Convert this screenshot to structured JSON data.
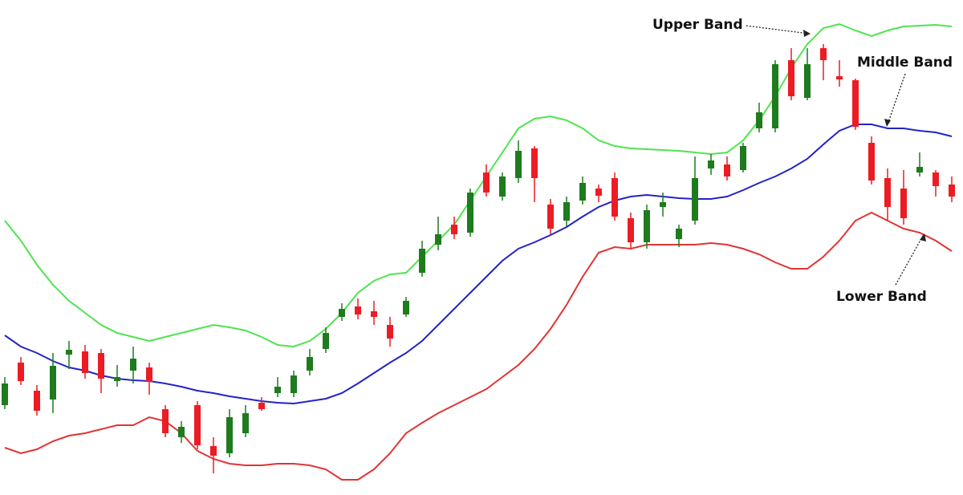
{
  "chart_data": {
    "type": "candlestick",
    "categories": [
      null,
      null,
      null,
      null,
      null,
      null,
      null,
      null,
      null,
      null,
      null,
      null,
      null,
      null,
      null,
      null,
      null,
      null,
      null,
      null,
      null,
      null,
      null,
      null,
      null,
      null,
      null,
      null,
      null,
      null,
      null,
      null,
      null,
      null,
      null,
      null,
      null,
      null,
      null,
      null,
      null,
      null,
      null,
      null,
      null,
      null,
      null,
      null,
      null,
      null,
      null,
      null,
      null,
      null,
      null,
      null,
      null,
      null,
      null,
      null
    ],
    "ylim": [
      383,
      1000
    ],
    "up_color": "#1e7b1e",
    "down_color": "#ec1c24",
    "candles": {
      "open": [
        495,
        548,
        513,
        502,
        558,
        562,
        560,
        525,
        538,
        542,
        490,
        455,
        495,
        444,
        435,
        460,
        498,
        510,
        510,
        538,
        565,
        605,
        618,
        612,
        595,
        608,
        660,
        695,
        720,
        710,
        785,
        755,
        778,
        815,
        745,
        725,
        750,
        765,
        778,
        728,
        698,
        742,
        702,
        725,
        790,
        795,
        788,
        840,
        840,
        925,
        878,
        940,
        905,
        900,
        822,
        778,
        765,
        785,
        785,
        770
      ],
      "close": [
        522,
        525,
        488,
        544,
        564,
        535,
        528,
        530,
        553,
        524,
        460,
        468,
        445,
        432,
        480,
        485,
        490,
        518,
        532,
        555,
        585,
        615,
        608,
        605,
        578,
        625,
        690,
        708,
        708,
        760,
        760,
        780,
        812,
        778,
        715,
        748,
        772,
        756,
        730,
        698,
        738,
        748,
        715,
        778,
        800,
        780,
        818,
        860,
        920,
        880,
        920,
        925,
        901,
        842,
        775,
        742,
        728,
        792,
        768,
        755
      ],
      "high": [
        530,
        555,
        520,
        560,
        575,
        570,
        565,
        545,
        568,
        548,
        495,
        475,
        500,
        455,
        490,
        495,
        505,
        530,
        538,
        565,
        592,
        622,
        628,
        625,
        605,
        630,
        700,
        730,
        730,
        765,
        795,
        785,
        825,
        818,
        752,
        755,
        780,
        770,
        785,
        735,
        745,
        760,
        720,
        805,
        808,
        805,
        822,
        872,
        925,
        940,
        940,
        945,
        925,
        902,
        830,
        790,
        788,
        810,
        788,
        780
      ],
      "low": [
        490,
        520,
        482,
        485,
        540,
        528,
        510,
        518,
        522,
        508,
        455,
        448,
        440,
        410,
        430,
        455,
        488,
        505,
        505,
        532,
        560,
        600,
        602,
        595,
        568,
        605,
        655,
        688,
        702,
        705,
        755,
        750,
        772,
        748,
        708,
        718,
        745,
        748,
        725,
        690,
        690,
        730,
        692,
        720,
        782,
        775,
        785,
        835,
        835,
        875,
        875,
        900,
        892,
        838,
        770,
        725,
        720,
        780,
        755,
        748
      ]
    },
    "series": [
      {
        "name": "Upper Band",
        "color": "#4ee44e",
        "values": [
          725,
          700,
          670,
          645,
          625,
          610,
          595,
          585,
          580,
          575,
          580,
          585,
          590,
          595,
          592,
          588,
          580,
          570,
          568,
          575,
          590,
          610,
          635,
          650,
          658,
          660,
          680,
          700,
          720,
          750,
          780,
          810,
          840,
          852,
          855,
          850,
          840,
          825,
          818,
          815,
          814,
          813,
          812,
          810,
          808,
          810,
          825,
          850,
          880,
          915,
          945,
          965,
          970,
          962,
          955,
          962,
          967,
          968,
          969,
          967
        ]
      },
      {
        "name": "Middle Band",
        "color": "#2323c8",
        "values": [
          582,
          568,
          560,
          550,
          542,
          538,
          532,
          528,
          526,
          525,
          522,
          518,
          513,
          510,
          506,
          503,
          500,
          498,
          497,
          500,
          503,
          510,
          522,
          535,
          548,
          560,
          575,
          595,
          615,
          635,
          655,
          675,
          690,
          698,
          707,
          717,
          730,
          742,
          750,
          755,
          757,
          755,
          753,
          752,
          752,
          755,
          763,
          772,
          780,
          790,
          802,
          820,
          837,
          845,
          845,
          840,
          840,
          837,
          835,
          830
        ]
      },
      {
        "name": "Lower Band",
        "color": "#e03434",
        "values": [
          442,
          435,
          440,
          450,
          457,
          460,
          465,
          470,
          470,
          480,
          475,
          460,
          438,
          428,
          422,
          420,
          420,
          422,
          422,
          420,
          415,
          402,
          402,
          415,
          435,
          460,
          473,
          485,
          495,
          505,
          515,
          530,
          545,
          565,
          590,
          620,
          655,
          685,
          692,
          690,
          695,
          695,
          695,
          695,
          697,
          695,
          690,
          683,
          673,
          665,
          665,
          680,
          700,
          725,
          735,
          725,
          715,
          710,
          700,
          687
        ]
      }
    ]
  }
}
